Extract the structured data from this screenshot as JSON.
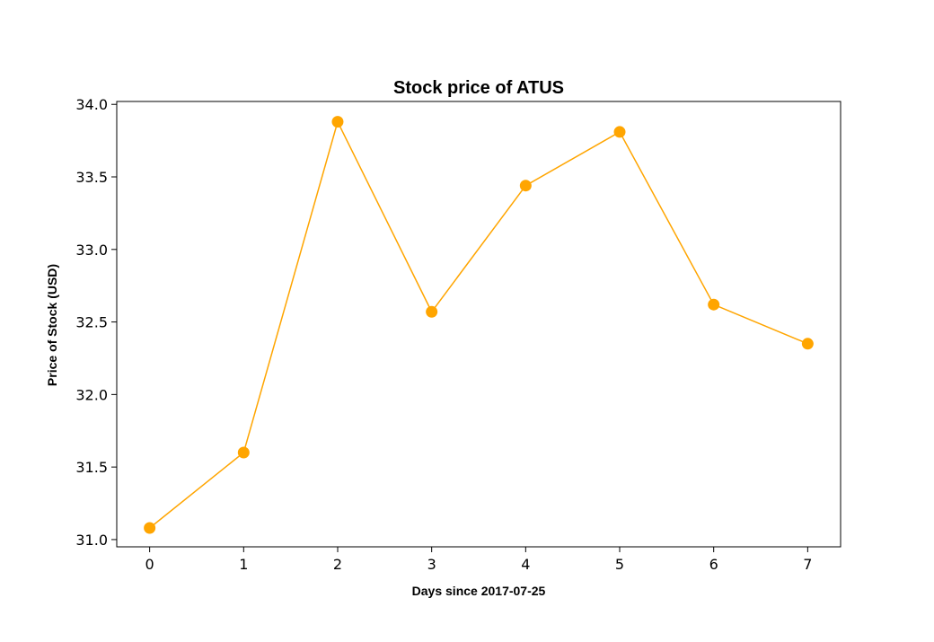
{
  "chart_data": {
    "type": "line",
    "title": "Stock price of ATUS",
    "xlabel": "Days since 2017-07-25",
    "ylabel": "Price of Stock (USD)",
    "x": [
      0,
      1,
      2,
      3,
      4,
      5,
      6,
      7
    ],
    "series": [
      {
        "values": [
          31.08,
          31.6,
          33.88,
          32.57,
          33.44,
          33.81,
          32.62,
          32.35
        ],
        "color": "#FFA500",
        "marker": "circle"
      }
    ],
    "xlim": [
      -0.35,
      7.35
    ],
    "ylim": [
      30.95,
      34.02
    ],
    "xticks": [
      "0",
      "1",
      "2",
      "3",
      "4",
      "5",
      "6",
      "7"
    ],
    "yticks": [
      "31.0",
      "31.5",
      "32.0",
      "32.5",
      "33.0",
      "33.5",
      "34.0"
    ],
    "grid": false,
    "legend": "none"
  }
}
